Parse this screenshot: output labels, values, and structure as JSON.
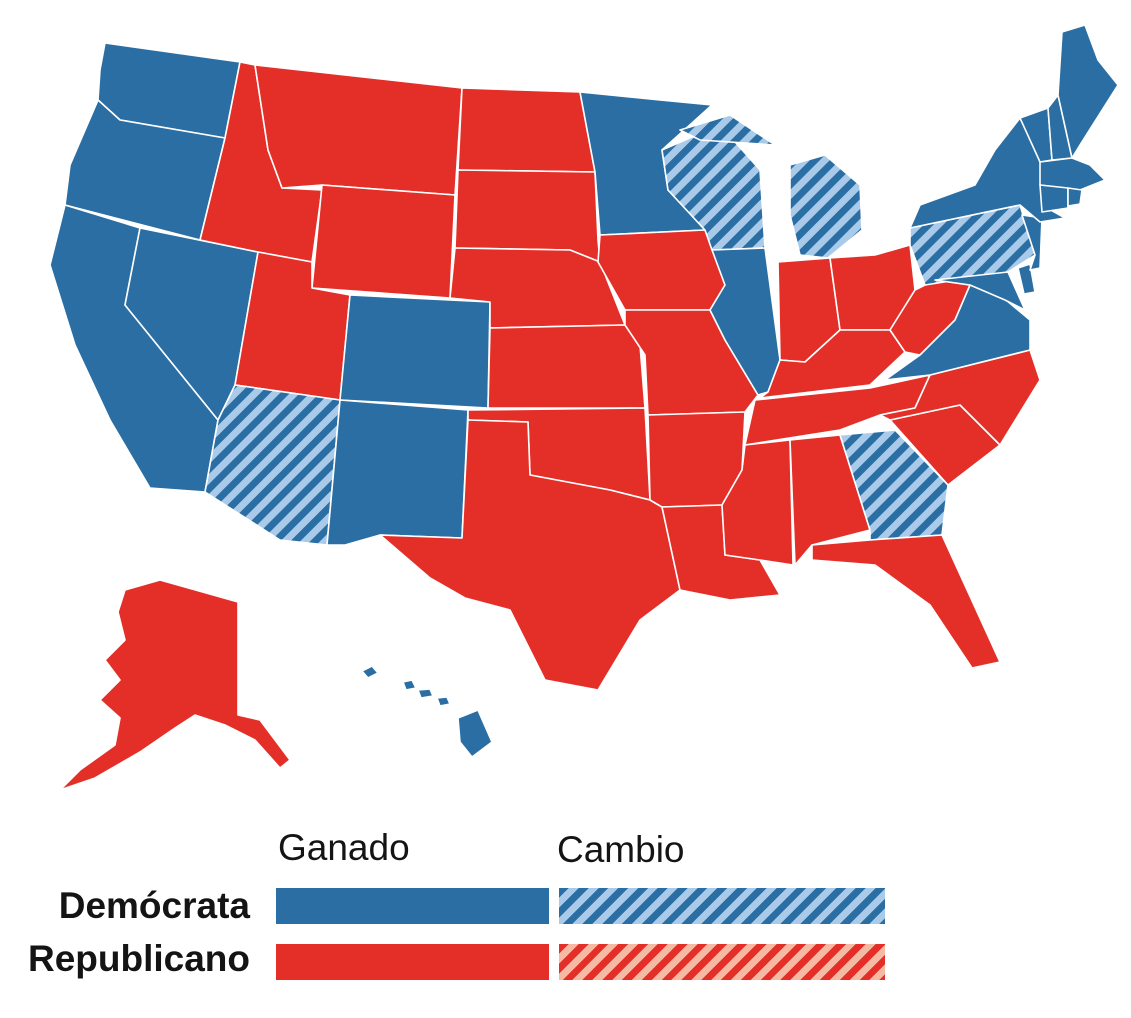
{
  "colors": {
    "democrat": "#2a6ea3",
    "republican": "#e42f28",
    "democrat_flip_stripe": "#a9cbe9",
    "republican_flip_stripe": "#f6b9a3",
    "border": "#ffffff"
  },
  "legend": {
    "columns": {
      "won": "Ganado",
      "flip": "Cambio"
    },
    "rows": {
      "democrat": "Demócrata",
      "republican": "Republicano"
    }
  },
  "states": [
    {
      "id": "WA",
      "result": "democrat"
    },
    {
      "id": "OR",
      "result": "democrat"
    },
    {
      "id": "CA",
      "result": "democrat"
    },
    {
      "id": "NV",
      "result": "democrat"
    },
    {
      "id": "CO",
      "result": "democrat"
    },
    {
      "id": "NM",
      "result": "democrat"
    },
    {
      "id": "MN",
      "result": "democrat"
    },
    {
      "id": "IL",
      "result": "democrat"
    },
    {
      "id": "VA",
      "result": "democrat"
    },
    {
      "id": "MD",
      "result": "democrat"
    },
    {
      "id": "DE",
      "result": "democrat"
    },
    {
      "id": "NJ",
      "result": "democrat"
    },
    {
      "id": "NY",
      "result": "democrat"
    },
    {
      "id": "CT",
      "result": "democrat"
    },
    {
      "id": "RI",
      "result": "democrat"
    },
    {
      "id": "MA",
      "result": "democrat"
    },
    {
      "id": "VT",
      "result": "democrat"
    },
    {
      "id": "NH",
      "result": "democrat"
    },
    {
      "id": "ME",
      "result": "democrat"
    },
    {
      "id": "HI",
      "result": "democrat"
    },
    {
      "id": "AZ",
      "result": "democrat-flip"
    },
    {
      "id": "WI",
      "result": "democrat-flip"
    },
    {
      "id": "MI",
      "result": "democrat-flip"
    },
    {
      "id": "PA",
      "result": "democrat-flip"
    },
    {
      "id": "GA",
      "result": "democrat-flip"
    },
    {
      "id": "ID",
      "result": "republican"
    },
    {
      "id": "MT",
      "result": "republican"
    },
    {
      "id": "WY",
      "result": "republican"
    },
    {
      "id": "UT",
      "result": "republican"
    },
    {
      "id": "ND",
      "result": "republican"
    },
    {
      "id": "SD",
      "result": "republican"
    },
    {
      "id": "NE",
      "result": "republican"
    },
    {
      "id": "KS",
      "result": "republican"
    },
    {
      "id": "OK",
      "result": "republican"
    },
    {
      "id": "TX",
      "result": "republican"
    },
    {
      "id": "IA",
      "result": "republican"
    },
    {
      "id": "MO",
      "result": "republican"
    },
    {
      "id": "AR",
      "result": "republican"
    },
    {
      "id": "LA",
      "result": "republican"
    },
    {
      "id": "MS",
      "result": "republican"
    },
    {
      "id": "AL",
      "result": "republican"
    },
    {
      "id": "TN",
      "result": "republican"
    },
    {
      "id": "KY",
      "result": "republican"
    },
    {
      "id": "IN",
      "result": "republican"
    },
    {
      "id": "OH",
      "result": "republican"
    },
    {
      "id": "WV",
      "result": "republican"
    },
    {
      "id": "NC",
      "result": "republican"
    },
    {
      "id": "SC",
      "result": "republican"
    },
    {
      "id": "FL",
      "result": "republican"
    },
    {
      "id": "AK",
      "result": "republican"
    }
  ]
}
